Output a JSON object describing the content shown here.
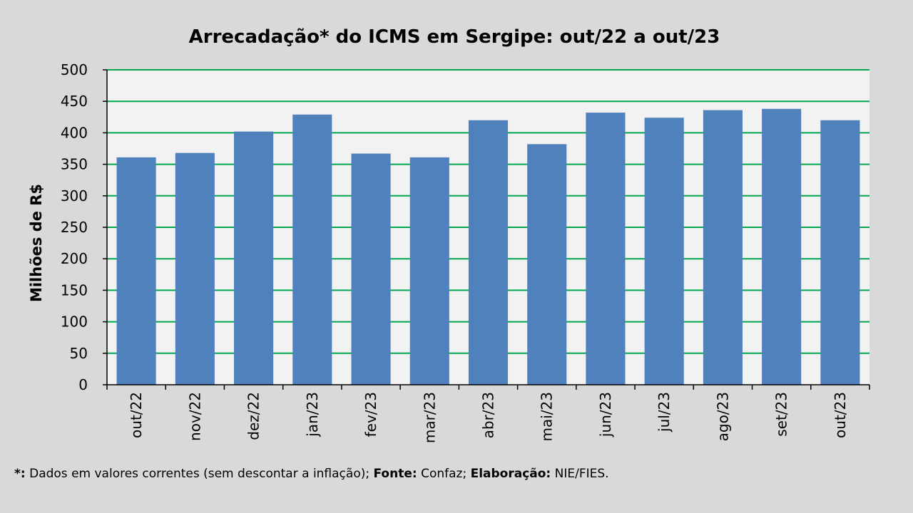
{
  "chart_data": {
    "type": "bar",
    "title": "Arrecadação* do ICMS em Sergipe: out/22 a out/23",
    "ylabel": "Milhões de R$",
    "xlabel": "",
    "categories": [
      "out/22",
      "nov/22",
      "dez/22",
      "jan/23",
      "fev/23",
      "mar/23",
      "abr/23",
      "mai/23",
      "jun/23",
      "jul/23",
      "ago/23",
      "set/23",
      "out/23"
    ],
    "values": [
      361,
      368,
      402,
      429,
      367,
      361,
      420,
      382,
      432,
      424,
      436,
      438,
      420
    ],
    "ylim": [
      0,
      500
    ],
    "yticks": [
      "0",
      "50",
      "100",
      "150",
      "200",
      "250",
      "300",
      "350",
      "400",
      "450",
      "500"
    ],
    "grid": true,
    "colors": {
      "bar": "#4f81bd",
      "grid": "#00a650",
      "plot_bg": "#f2f2f2",
      "frame_bg": "#d9d9d9"
    }
  },
  "footnote": {
    "mark": "*:",
    "note": " Dados em valores correntes (sem descontar a inflação); ",
    "source_label": "Fonte:",
    "source": " Confaz; ",
    "author_label": "Elaboração:",
    "author": " NIE/FIES."
  }
}
